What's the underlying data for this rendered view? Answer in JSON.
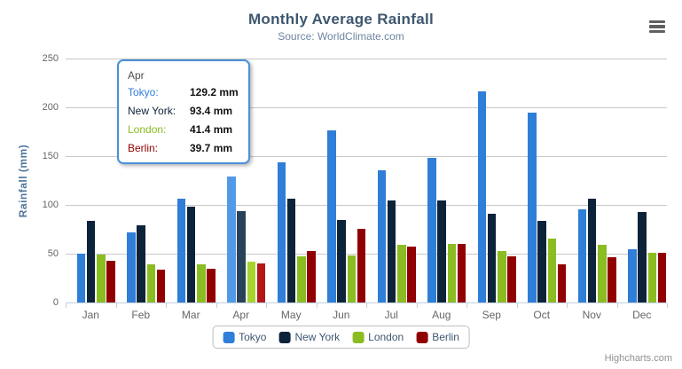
{
  "chart": {
    "title": "Monthly Average Rainfall",
    "subtitle": "Source: WorldClimate.com",
    "y_axis_title": "Rainfall (mm)",
    "credits": "Highcharts.com",
    "menu_icon": "hamburger-icon"
  },
  "colors": {
    "title_text": "#3E576F",
    "subtitle_text": "#6D869F",
    "axis_title_text": "#4d759e",
    "axis_label_text": "#666666",
    "gridline": "#c9c9c9",
    "axis_line": "#C0D0E0",
    "legend_text": "#3E576F",
    "tooltip_border": "#4a90d9"
  },
  "chart_data": {
    "type": "bar",
    "title": "Monthly Average Rainfall",
    "subtitle": "Source: WorldClimate.com",
    "xlabel": "",
    "ylabel": "Rainfall (mm)",
    "ylim": [
      0,
      250
    ],
    "yticks": [
      0,
      50,
      100,
      150,
      200,
      250
    ],
    "grid": true,
    "legend_position": "bottom",
    "categories": [
      "Jan",
      "Feb",
      "Mar",
      "Apr",
      "May",
      "Jun",
      "Jul",
      "Aug",
      "Sep",
      "Oct",
      "Nov",
      "Dec"
    ],
    "series": [
      {
        "name": "Tokyo",
        "color": "#2f7ed8",
        "hover_color": "#529ae8",
        "values": [
          49.9,
          71.5,
          106.4,
          129.2,
          144.0,
          176.0,
          135.6,
          148.5,
          216.4,
          194.1,
          95.6,
          54.4
        ]
      },
      {
        "name": "New York",
        "color": "#0d233a",
        "hover_color": "#29425a",
        "values": [
          83.6,
          78.8,
          98.5,
          93.4,
          106.0,
          84.5,
          105.0,
          104.3,
          91.2,
          83.5,
          106.6,
          92.3
        ]
      },
      {
        "name": "London",
        "color": "#8bbc21",
        "hover_color": "#a6d42e",
        "values": [
          48.9,
          38.8,
          39.3,
          41.4,
          47.0,
          48.3,
          59.0,
          59.6,
          52.4,
          65.2,
          59.3,
          51.2
        ]
      },
      {
        "name": "Berlin",
        "color": "#910000",
        "hover_color": "#b31717",
        "values": [
          42.4,
          33.2,
          34.5,
          39.7,
          52.6,
          75.5,
          57.4,
          60.4,
          47.6,
          39.1,
          46.8,
          51.1
        ]
      }
    ],
    "hovered_category_index": 3,
    "hovered_category": "Apr"
  },
  "tooltip": {
    "header": "Apr",
    "rows": [
      {
        "name": "Tokyo:",
        "value": "129.2 mm",
        "color": "#2f7ed8"
      },
      {
        "name": "New York:",
        "value": "93.4 mm",
        "color": "#0d233a"
      },
      {
        "name": "London:",
        "value": "41.4 mm",
        "color": "#8bbc21"
      },
      {
        "name": "Berlin:",
        "value": "39.7 mm",
        "color": "#910000"
      }
    ]
  }
}
